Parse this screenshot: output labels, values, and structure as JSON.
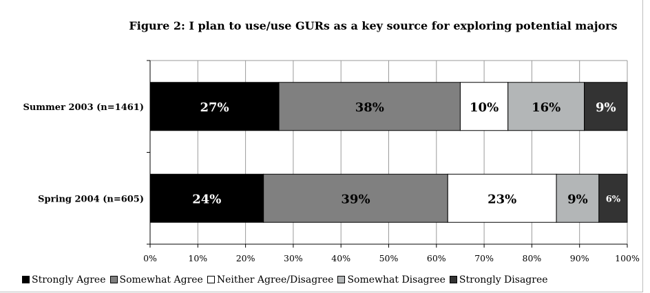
{
  "chart_data": {
    "type": "bar",
    "orientation": "horizontal",
    "stacked": true,
    "title": "Figure 2: I plan to use/use GURs as a key source for exploring potential majors",
    "categories": [
      "Summer 2003 (n=1461)",
      "Spring 2004 (n=605)"
    ],
    "series": [
      {
        "name": "Strongly Agree",
        "color": "#000000",
        "label_color": "#ffffff",
        "values": [
          27,
          24
        ],
        "labels": [
          "27%",
          "24%"
        ]
      },
      {
        "name": "Somewhat Agree",
        "color": "#808080",
        "label_color": "#000000",
        "values": [
          38,
          39
        ],
        "labels": [
          "38%",
          "39%"
        ]
      },
      {
        "name": "Neither Agree/Disagree",
        "color": "#ffffff",
        "label_color": "#000000",
        "values": [
          10,
          23
        ],
        "labels": [
          "10%",
          "23%"
        ]
      },
      {
        "name": "Somewhat Disagree",
        "color": "#b3b6b7",
        "label_color": "#000000",
        "values": [
          16,
          9
        ],
        "labels": [
          "16%",
          "9%"
        ]
      },
      {
        "name": "Strongly Disagree",
        "color": "#333333",
        "label_color": "#ffffff",
        "values": [
          9,
          6
        ],
        "labels": [
          "9%",
          "6%"
        ]
      }
    ],
    "xlim": [
      0,
      100
    ],
    "xticks": [
      "0%",
      "10%",
      "20%",
      "30%",
      "40%",
      "50%",
      "60%",
      "70%",
      "80%",
      "90%",
      "100%"
    ],
    "grid": true,
    "legend_position": "bottom"
  }
}
